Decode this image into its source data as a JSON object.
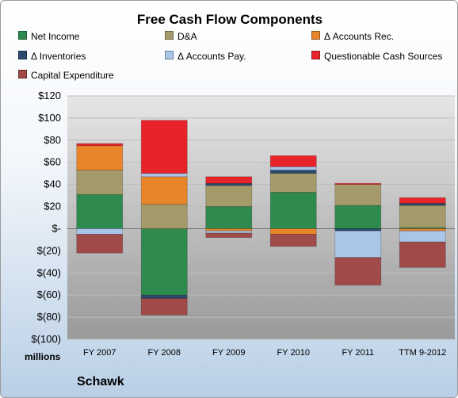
{
  "chart_data": {
    "type": "bar",
    "title": "Free Cash Flow Components",
    "subtitle": "Schawk",
    "ylabel": "millions",
    "xlabel": "",
    "categories": [
      "FY 2007",
      "FY 2008",
      "FY 2009",
      "FY 2010",
      "FY 2011",
      "TTM 9-2012"
    ],
    "ylim": [
      -100,
      120
    ],
    "ytick_values": [
      120,
      100,
      80,
      60,
      40,
      20,
      0,
      -20,
      -40,
      -60,
      -80,
      -100
    ],
    "ytick_labels": [
      "$120",
      "$100",
      "$80",
      "$60",
      "$40",
      "$20",
      "$-",
      "$(20)",
      "$(40)",
      "$(60)",
      "$(80)",
      "$(100)"
    ],
    "stacked": true,
    "legend_position": "top",
    "series": [
      {
        "name": "Net Income",
        "color": "#2f8a4f",
        "values": [
          31,
          -60,
          20,
          33,
          21,
          1
        ]
      },
      {
        "name": "D&A",
        "color": "#a59b6a",
        "values": [
          22,
          22,
          19,
          17,
          19,
          20
        ]
      },
      {
        "name": "Δ Accounts Rec.",
        "color": "#e8852a",
        "values": [
          22,
          25,
          -2,
          -5,
          0,
          -2
        ]
      },
      {
        "name": "Δ Inventories",
        "color": "#2c4a6e",
        "values": [
          0,
          -3,
          2,
          3,
          -2,
          2
        ]
      },
      {
        "name": "Δ Accounts Pay.",
        "color": "#a9c6e8",
        "values": [
          -5,
          3,
          -2,
          3,
          -24,
          -10
        ]
      },
      {
        "name": "Questionable Cash Sources",
        "color": "#e8242a",
        "values": [
          2,
          48,
          6,
          10,
          1,
          5
        ]
      },
      {
        "name": "Capital Expenditure",
        "color": "#a14a4a",
        "values": [
          -17,
          -15,
          -4,
          -11,
          -25,
          -23
        ]
      }
    ]
  }
}
